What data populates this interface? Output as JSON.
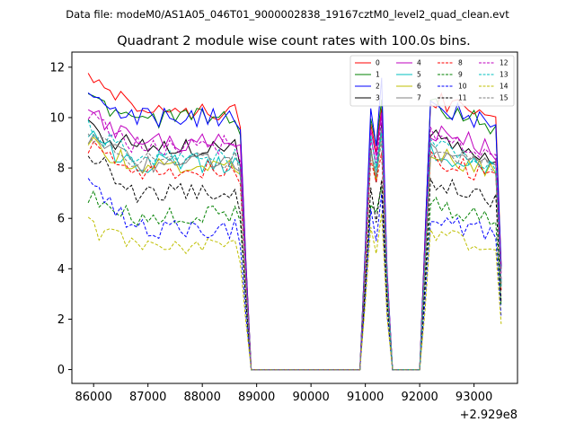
{
  "header": {
    "data_file": "Data file: modeM0/AS1A05_046T01_9000002838_19167cztM0_level2_quad_clean.evt"
  },
  "chart_data": {
    "type": "line",
    "title": "Quadrant 2 module wise count rates with 100.0s bins.",
    "xlabel": "",
    "ylabel": "",
    "x_offset_label": "+2.929e8",
    "xlim": [
      85600,
      93800
    ],
    "ylim": [
      -0.55,
      12.6
    ],
    "xticks": [
      86000,
      87000,
      88000,
      89000,
      90000,
      91000,
      92000,
      93000
    ],
    "yticks": [
      0,
      2,
      4,
      6,
      8,
      10,
      12
    ],
    "legend_position": "top-right",
    "grid": false,
    "segments": [
      {
        "start": 85900,
        "end": 88800,
        "step": 100
      },
      {
        "start": 88900,
        "end": 90900,
        "step": 100
      },
      {
        "start": 91000,
        "end": 91500,
        "step": 100
      },
      {
        "start": 91600,
        "end": 92000,
        "step": 100
      },
      {
        "start": 92100,
        "end": 93500,
        "step": 100
      }
    ],
    "series": [
      {
        "name": "0",
        "color": "#ff0000",
        "dash": "solid",
        "base": [
          11.9,
          10.3,
          9.8
        ],
        "burst": [
          8.6,
          9.7,
          10.5,
          8.2
        ],
        "seed": 1
      },
      {
        "name": "1",
        "color": "#008000",
        "dash": "solid",
        "base": [
          10.7,
          10.0,
          9.5
        ],
        "burst": [
          8.8,
          10.0,
          10.7,
          8.5
        ],
        "seed": 2
      },
      {
        "name": "2",
        "color": "#0000ff",
        "dash": "solid",
        "base": [
          10.8,
          10.0,
          9.7
        ],
        "burst": [
          8.9,
          10.3,
          11.5,
          8.8
        ],
        "seed": 3
      },
      {
        "name": "3",
        "color": "#000000",
        "dash": "solid",
        "base": [
          9.6,
          8.8,
          8.2
        ],
        "burst": [
          7.6,
          8.9,
          9.8,
          7.5
        ],
        "seed": 4
      },
      {
        "name": "4",
        "color": "#bf00bf",
        "dash": "solid",
        "base": [
          10.3,
          9.0,
          9.1
        ],
        "burst": [
          8.3,
          9.5,
          10.1,
          8.6
        ],
        "seed": 5
      },
      {
        "name": "5",
        "color": "#00bfbf",
        "dash": "solid",
        "base": [
          9.2,
          8.2,
          8.3
        ],
        "burst": [
          7.9,
          9.2,
          9.5,
          8.0
        ],
        "seed": 6
      },
      {
        "name": "6",
        "color": "#bfbf00",
        "dash": "solid",
        "base": [
          9.0,
          8.1,
          7.9
        ],
        "burst": [
          7.7,
          8.7,
          9.3,
          7.6
        ],
        "seed": 7
      },
      {
        "name": "7",
        "color": "#808080",
        "dash": "solid",
        "base": [
          9.2,
          8.2,
          8.0
        ],
        "burst": [
          7.8,
          8.8,
          9.4,
          7.6
        ],
        "seed": 8
      },
      {
        "name": "8",
        "color": "#ff0000",
        "dash": "dashed",
        "base": [
          8.8,
          7.9,
          7.5
        ],
        "burst": [
          7.3,
          8.3,
          8.8,
          7.1
        ],
        "seed": 9
      },
      {
        "name": "9",
        "color": "#008000",
        "dash": "dashed",
        "base": [
          7.0,
          6.1,
          6.0
        ],
        "burst": [
          6.2,
          6.7,
          7.4,
          6.2
        ],
        "seed": 10
      },
      {
        "name": "10",
        "color": "#0000ff",
        "dash": "dashed",
        "base": [
          7.4,
          5.6,
          5.0
        ],
        "burst": [
          5.3,
          6.3,
          6.8,
          5.0
        ],
        "seed": 11
      },
      {
        "name": "11",
        "color": "#000000",
        "dash": "dashed",
        "base": [
          8.6,
          7.0,
          6.3
        ],
        "burst": [
          6.0,
          7.1,
          7.6,
          6.2
        ],
        "seed": 12
      },
      {
        "name": "12",
        "color": "#bf00bf",
        "dash": "dashed",
        "base": [
          10.0,
          8.9,
          8.4
        ],
        "burst": [
          8.1,
          9.2,
          10.0,
          8.4
        ],
        "seed": 13
      },
      {
        "name": "13",
        "color": "#00bfbf",
        "dash": "dashed",
        "base": [
          9.7,
          8.4,
          7.8
        ],
        "burst": [
          7.9,
          8.8,
          9.4,
          7.7
        ],
        "seed": 14
      },
      {
        "name": "14",
        "color": "#bfbf00",
        "dash": "dashed",
        "base": [
          5.7,
          5.0,
          4.3
        ],
        "burst": [
          4.8,
          5.5,
          6.0,
          4.6
        ],
        "seed": 15
      },
      {
        "name": "15",
        "color": "#808080",
        "dash": "dashed",
        "base": [
          9.4,
          8.3,
          7.9
        ],
        "burst": [
          7.7,
          8.7,
          9.2,
          7.4
        ],
        "seed": 16
      }
    ]
  }
}
